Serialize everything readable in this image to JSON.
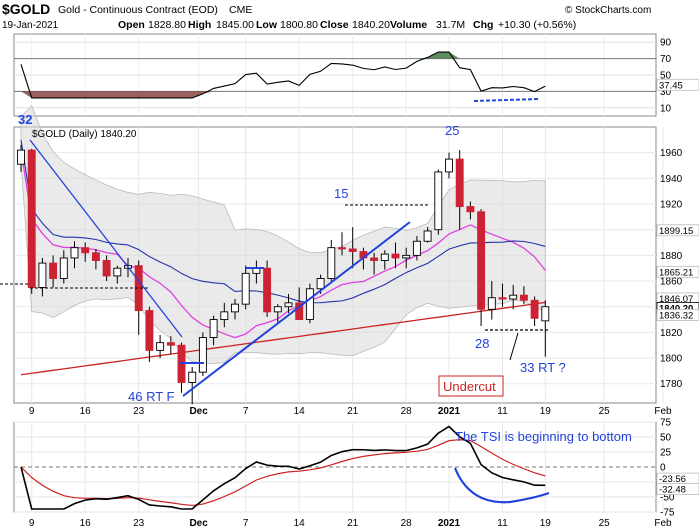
{
  "header": {
    "symbol": "$GOLD",
    "name": "Gold - Continuous Contract (EOD)",
    "exchange": "CME",
    "copyright": "© StockCharts.com",
    "date": "19-Jan-2021",
    "open_label": "Open",
    "open": "1828.80",
    "high_label": "High",
    "high": "1845.00",
    "low_label": "Low",
    "low": "1800.80",
    "close_label": "Close",
    "close": "1840.20",
    "volume_label": "Volume",
    "volume": "31.7M",
    "chg_label": "Chg",
    "chg": "+10.30 (+0.56%)"
  },
  "main_label": "$GOLD (Daily) 1840.20",
  "colors": {
    "up": "#ffffff",
    "down": "#cc2233",
    "ma_short": "#e040e0",
    "ma_mid": "#2233aa",
    "ma_long": "#cc2222",
    "band": "#d8d8d8",
    "trend": "#2244dd",
    "annot_blue": "#2244dd",
    "annot_red": "#cc2222",
    "osc": "#000000",
    "osc_fill_up": "#447744",
    "osc_fill_dn": "#884444"
  },
  "x_axis": [
    "9",
    "16",
    "23",
    "Dec",
    "7",
    "14",
    "21",
    "28",
    "2021",
    "11",
    "19",
    "25",
    "Feb"
  ],
  "annotations": {
    "c32": "32",
    "c25": "25",
    "c15": "15",
    "c28": "28",
    "c46": "46 RT F",
    "c33": "33 RT ?",
    "undercut": "Undercut",
    "tsi_note": "The TSI is beginning to bottom"
  },
  "osc_panel": {
    "ticks": [
      "90",
      "70",
      "50",
      "30",
      "10"
    ],
    "value": "37.45"
  },
  "price_panel": {
    "ticks": [
      "1960",
      "1940",
      "1920",
      "1900",
      "1880",
      "1860",
      "1840",
      "1820",
      "1800",
      "1780"
    ],
    "value_labels": [
      "1899.15",
      "1865.21",
      "1846.07",
      "1840.20",
      "1836.32"
    ]
  },
  "tsi_panel": {
    "ticks": [
      "75",
      "50",
      "25",
      "0",
      "-25",
      "-50",
      "-75"
    ],
    "value_labels": [
      "-23.56",
      "-32.48"
    ]
  },
  "chart_data": {
    "type": "candlestick",
    "title": "$GOLD (Daily) 1840.20",
    "dates": [
      "Nov 6",
      "Nov 9",
      "Nov 10",
      "Nov 11",
      "Nov 12",
      "Nov 13",
      "Nov 16",
      "Nov 17",
      "Nov 18",
      "Nov 19",
      "Nov 20",
      "Nov 23",
      "Nov 24",
      "Nov 25",
      "Nov 26",
      "Nov 27",
      "Nov 30",
      "Dec 1",
      "Dec 2",
      "Dec 3",
      "Dec 4",
      "Dec 7",
      "Dec 8",
      "Dec 9",
      "Dec 10",
      "Dec 11",
      "Dec 14",
      "Dec 15",
      "Dec 16",
      "Dec 17",
      "Dec 18",
      "Dec 21",
      "Dec 22",
      "Dec 23",
      "Dec 24",
      "Dec 28",
      "Dec 29",
      "Dec 30",
      "Dec 31",
      "Jan 4",
      "Jan 5",
      "Jan 6",
      "Jan 7",
      "Jan 8",
      "Jan 11",
      "Jan 12",
      "Jan 13",
      "Jan 14",
      "Jan 15",
      "Jan 19"
    ],
    "ohlc": [
      [
        1951,
        1966,
        1945,
        1962
      ],
      [
        1962,
        1963,
        1850,
        1855
      ],
      [
        1855,
        1878,
        1848,
        1874
      ],
      [
        1874,
        1880,
        1855,
        1862
      ],
      [
        1862,
        1884,
        1858,
        1878
      ],
      [
        1878,
        1891,
        1870,
        1886
      ],
      [
        1886,
        1890,
        1875,
        1882
      ],
      [
        1882,
        1885,
        1869,
        1876
      ],
      [
        1876,
        1880,
        1860,
        1864
      ],
      [
        1864,
        1872,
        1858,
        1870
      ],
      [
        1870,
        1878,
        1863,
        1872
      ],
      [
        1872,
        1876,
        1818,
        1837
      ],
      [
        1837,
        1840,
        1797,
        1806
      ],
      [
        1806,
        1818,
        1800,
        1812
      ],
      [
        1812,
        1817,
        1803,
        1810
      ],
      [
        1810,
        1812,
        1773,
        1781
      ],
      [
        1781,
        1793,
        1764,
        1789
      ],
      [
        1789,
        1820,
        1786,
        1816
      ],
      [
        1816,
        1833,
        1810,
        1830
      ],
      [
        1830,
        1843,
        1824,
        1836
      ],
      [
        1836,
        1846,
        1830,
        1842
      ],
      [
        1842,
        1872,
        1838,
        1866
      ],
      [
        1866,
        1876,
        1858,
        1870
      ],
      [
        1870,
        1876,
        1832,
        1836
      ],
      [
        1836,
        1842,
        1828,
        1840
      ],
      [
        1840,
        1850,
        1835,
        1843
      ],
      [
        1843,
        1855,
        1830,
        1830
      ],
      [
        1830,
        1858,
        1827,
        1854
      ],
      [
        1854,
        1865,
        1850,
        1862
      ],
      [
        1862,
        1892,
        1860,
        1886
      ],
      [
        1886,
        1898,
        1880,
        1885
      ],
      [
        1885,
        1902,
        1870,
        1883
      ],
      [
        1883,
        1886,
        1869,
        1878
      ],
      [
        1878,
        1882,
        1865,
        1876
      ],
      [
        1876,
        1884,
        1869,
        1881
      ],
      [
        1881,
        1890,
        1870,
        1878
      ],
      [
        1878,
        1886,
        1870,
        1880
      ],
      [
        1880,
        1895,
        1876,
        1891
      ],
      [
        1891,
        1902,
        1890,
        1899
      ],
      [
        1900,
        1947,
        1896,
        1945
      ],
      [
        1945,
        1960,
        1940,
        1955
      ],
      [
        1955,
        1962,
        1900,
        1918
      ],
      [
        1918,
        1922,
        1908,
        1914
      ],
      [
        1914,
        1916,
        1825,
        1838
      ],
      [
        1838,
        1860,
        1830,
        1847
      ],
      [
        1847,
        1858,
        1840,
        1846
      ],
      [
        1846,
        1857,
        1838,
        1849
      ],
      [
        1849,
        1856,
        1842,
        1845
      ],
      [
        1845,
        1848,
        1825,
        1831
      ],
      [
        1829,
        1845,
        1801,
        1840
      ]
    ],
    "ylim": [
      1765,
      1980
    ],
    "overlays": [
      "short moving average (magenta)",
      "medium moving average (dark blue)",
      "long moving average (red)",
      "Bollinger band (gray)"
    ],
    "upper_indicator": {
      "type": "oscillator",
      "ylim": [
        0,
        100
      ],
      "last": 37.45
    },
    "lower_indicator": {
      "type": "TSI",
      "ylim": [
        -75,
        75
      ],
      "series": [
        {
          "last": -32.48
        },
        {
          "last": -23.56
        }
      ]
    },
    "grid": true
  }
}
